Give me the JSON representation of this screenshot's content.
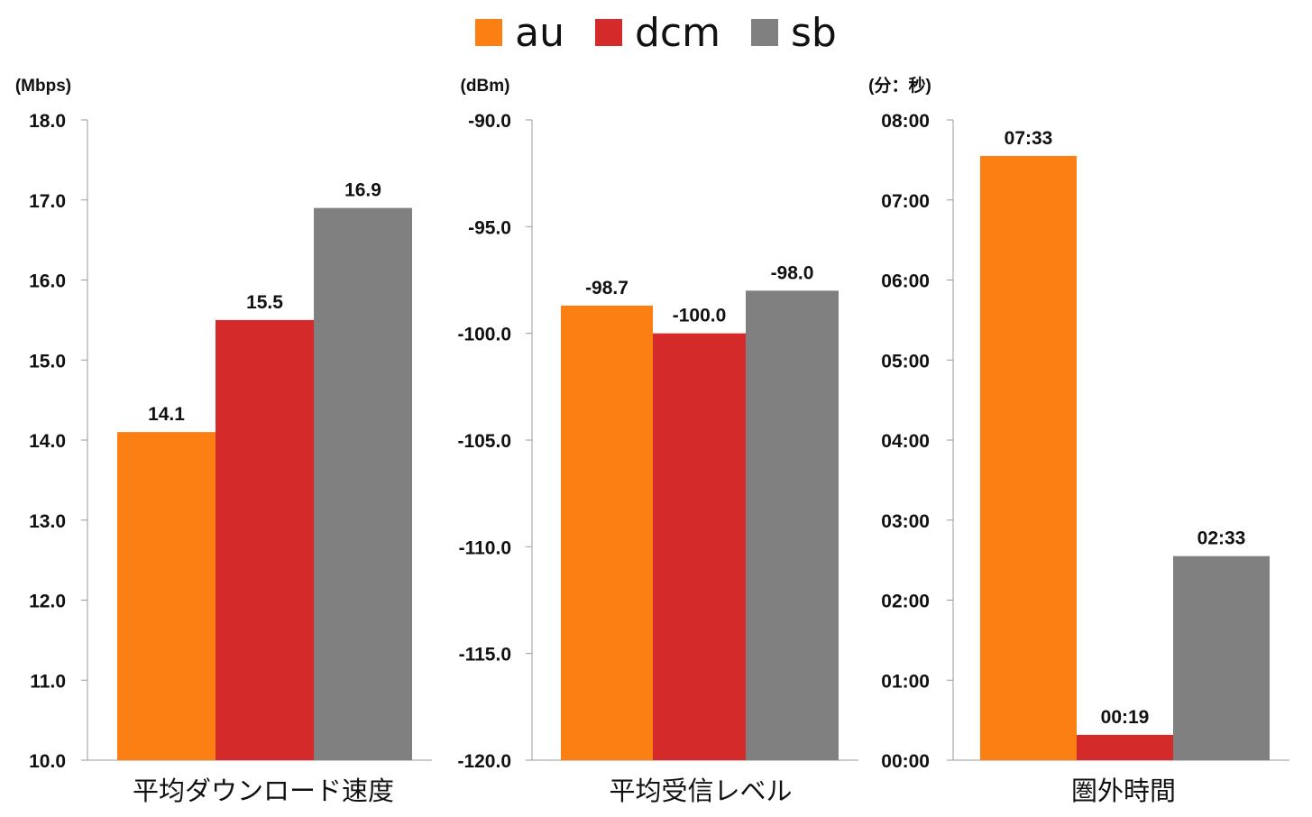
{
  "legend": {
    "items": [
      {
        "label": "au",
        "color": "#fb7f13"
      },
      {
        "label": "dcm",
        "color": "#d52a2a"
      },
      {
        "label": "sb",
        "color": "#808080"
      }
    ]
  },
  "chart_data": [
    {
      "type": "bar",
      "title": "",
      "xlabel": "平均ダウンロード速度",
      "ylabel": "(Mbps)",
      "ylim": [
        10.0,
        18.0
      ],
      "yticks": [
        10.0,
        11.0,
        12.0,
        13.0,
        14.0,
        15.0,
        16.0,
        17.0,
        18.0
      ],
      "ytick_labels": [
        "10.0",
        "11.0",
        "12.0",
        "13.0",
        "14.0",
        "15.0",
        "16.0",
        "17.0",
        "18.0"
      ],
      "series": [
        {
          "name": "au",
          "value": 14.1,
          "label": "14.1"
        },
        {
          "name": "dcm",
          "value": 15.5,
          "label": "15.5"
        },
        {
          "name": "sb",
          "value": 16.9,
          "label": "16.9"
        }
      ]
    },
    {
      "type": "bar",
      "title": "",
      "xlabel": "平均受信レベル",
      "ylabel": "(dBm)",
      "ylim": [
        -120.0,
        -90.0
      ],
      "yticks": [
        -120.0,
        -115.0,
        -110.0,
        -105.0,
        -100.0,
        -95.0,
        -90.0
      ],
      "ytick_labels": [
        "-120.0",
        "-115.0",
        "-110.0",
        "-105.0",
        "-100.0",
        "-95.0",
        "-90.0"
      ],
      "series": [
        {
          "name": "au",
          "value": -98.7,
          "label": "-98.7"
        },
        {
          "name": "dcm",
          "value": -100.0,
          "label": "-100.0"
        },
        {
          "name": "sb",
          "value": -98.0,
          "label": "-98.0"
        }
      ]
    },
    {
      "type": "bar",
      "title": "",
      "xlabel": "圏外時間",
      "ylabel": "(分：秒)",
      "ylim": [
        0,
        480
      ],
      "yticks": [
        0,
        60,
        120,
        180,
        240,
        300,
        360,
        420,
        480
      ],
      "ytick_labels": [
        "00:00",
        "01:00",
        "02:00",
        "03:00",
        "04:00",
        "05:00",
        "06:00",
        "07:00",
        "08:00"
      ],
      "series": [
        {
          "name": "au",
          "value": 453,
          "label": "07:33"
        },
        {
          "name": "dcm",
          "value": 19,
          "label": "00:19"
        },
        {
          "name": "sb",
          "value": 153,
          "label": "02:33"
        }
      ]
    }
  ]
}
